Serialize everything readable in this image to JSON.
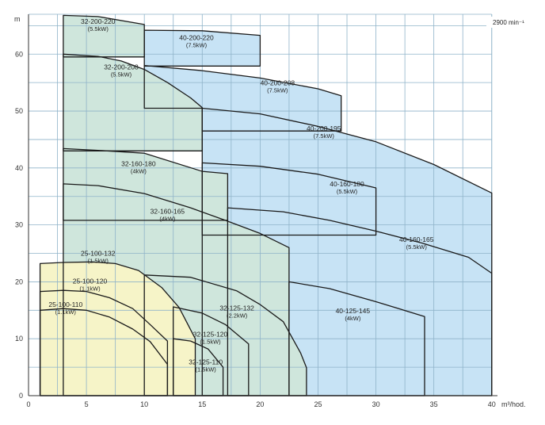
{
  "chart_data": {
    "type": "area",
    "title": "",
    "speed_label": "2900 min⁻¹",
    "xlabel": "m³/hod.",
    "ylabel": "m",
    "xlim": [
      0,
      42
    ],
    "ylim": [
      0,
      67
    ],
    "x_ticks": [
      0,
      5,
      10,
      15,
      20,
      25,
      30,
      35,
      40
    ],
    "y_ticks": [
      0,
      10,
      20,
      30,
      40,
      50,
      60
    ],
    "x_grid_step": 2.5,
    "y_grid_step": 5,
    "grid": true,
    "colors": {
      "yellow": "#f6f4c8",
      "green": "#cfe6dc",
      "blue": "#c7e3f5",
      "grid": "#8fb3c9",
      "outline": "#1a1a1a"
    },
    "regions": [
      {
        "name": "40-200-220",
        "power": "(7.5kW)",
        "color": "blue",
        "outline": [
          [
            10,
            64.2
          ],
          [
            15,
            64.1
          ],
          [
            20,
            63.3
          ],
          [
            20,
            57.9
          ],
          [
            10,
            57.9
          ]
        ],
        "label_at": [
          14.5,
          62.5
        ]
      },
      {
        "name": "40-200-208",
        "power": "(7.5kW)",
        "color": "blue",
        "outline": [
          [
            10,
            58
          ],
          [
            15,
            57.1
          ],
          [
            20,
            55.8
          ],
          [
            25,
            53.9
          ],
          [
            27,
            52.7
          ],
          [
            27,
            46.5
          ],
          [
            15,
            46.5
          ],
          [
            15,
            50.5
          ],
          [
            10,
            50.5
          ]
        ],
        "label_at": [
          21.5,
          54.5
        ]
      },
      {
        "name": "40-200-195",
        "power": "(7.5kW)",
        "color": "blue",
        "outline": [
          [
            15,
            50.5
          ],
          [
            20,
            49.5
          ],
          [
            25,
            47.3
          ],
          [
            30,
            44.6
          ],
          [
            35,
            40.6
          ],
          [
            40,
            35.6
          ],
          [
            40,
            0
          ],
          [
            15,
            0
          ]
        ],
        "label_at": [
          25.5,
          46.5
        ]
      },
      {
        "name": "40-160-180",
        "power": "(5.5kW)",
        "color": "blue",
        "outline": [
          [
            15,
            40.9
          ],
          [
            20,
            40.3
          ],
          [
            25,
            38.9
          ],
          [
            30,
            36.5
          ],
          [
            30,
            28.2
          ],
          [
            15,
            28.2
          ]
        ],
        "label_at": [
          27.5,
          36.8
        ]
      },
      {
        "name": "40-160-165",
        "power": "(5.5kW)",
        "color": "blue",
        "outline": [
          [
            17.2,
            33
          ],
          [
            22,
            32.3
          ],
          [
            26,
            30.8
          ],
          [
            30,
            28.9
          ],
          [
            34,
            26.8
          ],
          [
            38,
            24.3
          ],
          [
            40,
            21.5
          ],
          [
            40,
            0
          ],
          [
            17.2,
            0
          ]
        ],
        "label_at": [
          33.5,
          27
        ]
      },
      {
        "name": "40-125-145",
        "power": "(4kW)",
        "color": "blue",
        "outline": [
          [
            22.5,
            20
          ],
          [
            26,
            18.8
          ],
          [
            30,
            16.5
          ],
          [
            34.2,
            13.9
          ],
          [
            34.2,
            0
          ],
          [
            22.5,
            0
          ]
        ],
        "label_at": [
          28,
          14.5
        ]
      },
      {
        "name": "32-200-220",
        "power": "(5.5kW)",
        "color": "green",
        "outline": [
          [
            3,
            66.8
          ],
          [
            6,
            66.6
          ],
          [
            10,
            65.2
          ],
          [
            10,
            59.5
          ],
          [
            3,
            59.5
          ]
        ],
        "label_at": [
          6,
          65.3
        ]
      },
      {
        "name": "32-200-208",
        "power": "(5.5kW)",
        "color": "green",
        "outline": [
          [
            3,
            60
          ],
          [
            6,
            59.6
          ],
          [
            8,
            58.8
          ],
          [
            10,
            57.3
          ],
          [
            12,
            55
          ],
          [
            14,
            52.3
          ],
          [
            15,
            50.6
          ],
          [
            15,
            43
          ],
          [
            3,
            43
          ]
        ],
        "label_at": [
          8,
          57.3
        ]
      },
      {
        "name": "32-160-180",
        "power": "(4kW)",
        "color": "green",
        "outline": [
          [
            3,
            43.4
          ],
          [
            6,
            43.1
          ],
          [
            10,
            42.6
          ],
          [
            15,
            39.4
          ],
          [
            17.2,
            39
          ],
          [
            17.2,
            30.8
          ],
          [
            3,
            30.8
          ]
        ],
        "label_at": [
          9.5,
          40.3
        ]
      },
      {
        "name": "32-160-165",
        "power": "(4kW)",
        "color": "green",
        "outline": [
          [
            3,
            37.2
          ],
          [
            6,
            36.9
          ],
          [
            10,
            35.5
          ],
          [
            14,
            33
          ],
          [
            17,
            30.8
          ],
          [
            20,
            28.5
          ],
          [
            22.5,
            26
          ],
          [
            22.5,
            0
          ],
          [
            3,
            0
          ]
        ],
        "label_at": [
          12,
          32
        ]
      },
      {
        "name": "32-125-132",
        "power": "(2.2kW)",
        "color": "green",
        "outline": [
          [
            10,
            21.2
          ],
          [
            14,
            20.8
          ],
          [
            18,
            18.4
          ],
          [
            20,
            16
          ],
          [
            22,
            13
          ],
          [
            23.5,
            7.5
          ],
          [
            24,
            4.9
          ],
          [
            24,
            0
          ],
          [
            10,
            0
          ]
        ],
        "label_at": [
          18,
          15
        ]
      },
      {
        "name": "32-125-120",
        "power": "(1.5kW)",
        "color": "green",
        "outline": [
          [
            12.5,
            15.6
          ],
          [
            15,
            14.5
          ],
          [
            17,
            12.5
          ],
          [
            19,
            9.1
          ],
          [
            19,
            0
          ],
          [
            12.5,
            0
          ]
        ],
        "label_at": [
          15.7,
          10.4
        ]
      },
      {
        "name": "32-125-110",
        "power": "(1.5kW)",
        "color": "green",
        "outline": [
          [
            12.5,
            10
          ],
          [
            14,
            9.6
          ],
          [
            15.5,
            8.2
          ],
          [
            16.8,
            5
          ],
          [
            16.8,
            0
          ],
          [
            12.5,
            0
          ]
        ],
        "label_at": [
          15.3,
          5.5
        ]
      },
      {
        "name": "25-100-132",
        "power": "(1.5kW)",
        "color": "yellow",
        "outline": [
          [
            1,
            23.2
          ],
          [
            3,
            23.4
          ],
          [
            5.5,
            23.5
          ],
          [
            7.5,
            23.2
          ],
          [
            9.5,
            22
          ],
          [
            11.5,
            19
          ],
          [
            13,
            15.5
          ],
          [
            14.4,
            10
          ],
          [
            14.4,
            0
          ],
          [
            1,
            0
          ]
        ],
        "label_at": [
          6,
          24.6
        ]
      },
      {
        "name": "25-100-120",
        "power": "(1.1kW)",
        "color": "yellow",
        "outline": [
          [
            1,
            18.3
          ],
          [
            3,
            18.5
          ],
          [
            5,
            18.3
          ],
          [
            7,
            17.2
          ],
          [
            9,
            15.3
          ],
          [
            10.5,
            12.5
          ],
          [
            12,
            9.6
          ],
          [
            12,
            0
          ],
          [
            1,
            0
          ]
        ],
        "label_at": [
          5.3,
          19.7
        ]
      },
      {
        "name": "25-100-110",
        "power": "(1.1kW)",
        "color": "yellow",
        "outline": [
          [
            1,
            15
          ],
          [
            3,
            15.3
          ],
          [
            5,
            15
          ],
          [
            7,
            13.8
          ],
          [
            9,
            11.7
          ],
          [
            10.5,
            9.5
          ],
          [
            12,
            5.5
          ],
          [
            12,
            0
          ],
          [
            1,
            0
          ]
        ],
        "label_at": [
          3.2,
          15.6
        ]
      }
    ]
  }
}
